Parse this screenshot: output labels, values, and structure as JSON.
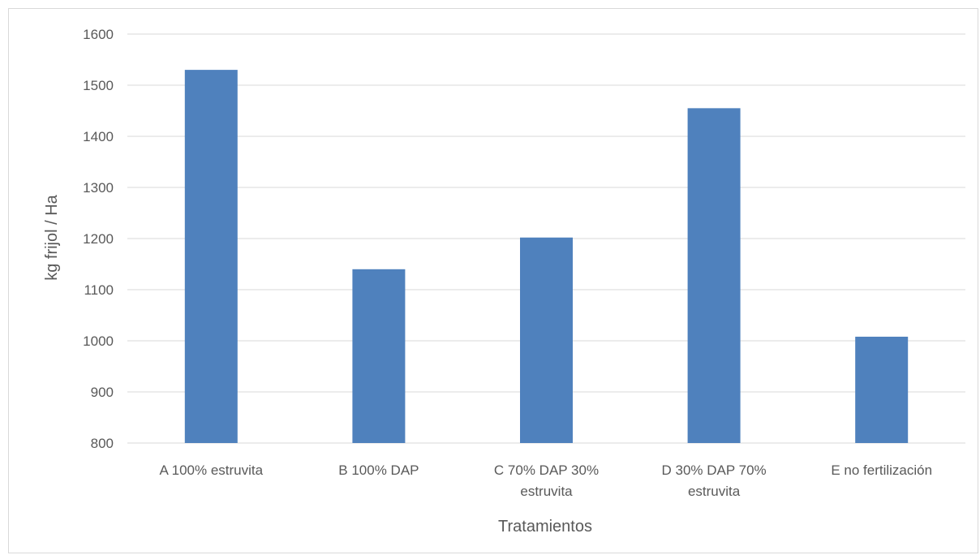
{
  "chart_data": {
    "type": "bar",
    "title": "",
    "xlabel": "Tratamientos",
    "ylabel": "kg frijol / Ha",
    "ylim": [
      800,
      1600
    ],
    "yticks": [
      800,
      900,
      1000,
      1100,
      1200,
      1300,
      1400,
      1500,
      1600
    ],
    "grid": true,
    "legend": "none",
    "bar_color": "#4f81bd",
    "categories": [
      [
        "A 100% estruvita"
      ],
      [
        "B 100% DAP"
      ],
      [
        "C 70% DAP 30%",
        "estruvita"
      ],
      [
        "D 30% DAP 70%",
        "estruvita"
      ],
      [
        "E no fertilización"
      ]
    ],
    "values": [
      1530,
      1140,
      1202,
      1455,
      1008
    ]
  }
}
